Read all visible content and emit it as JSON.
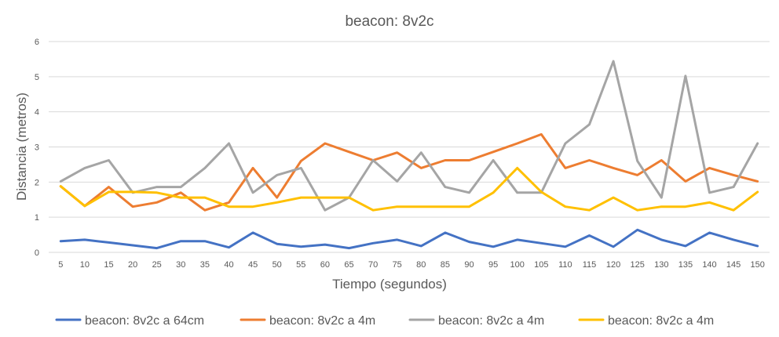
{
  "chart_data": {
    "type": "line",
    "title": "beacon: 8v2c",
    "xlabel": "Tiempo (segundos)",
    "ylabel": "Distancia (metros)",
    "ylim": [
      0,
      6
    ],
    "yticks": [
      "0",
      "1",
      "2",
      "3",
      "4",
      "5",
      "6"
    ],
    "grid": true,
    "legend": "bottom",
    "x": [
      5,
      10,
      15,
      20,
      25,
      30,
      35,
      40,
      45,
      50,
      55,
      60,
      65,
      70,
      75,
      80,
      85,
      90,
      95,
      100,
      105,
      110,
      115,
      120,
      125,
      130,
      135,
      140,
      145,
      150
    ],
    "series": [
      {
        "name": "beacon: 8v2c a 64cm",
        "color": "#4472c4",
        "values": [
          0.32,
          0.36,
          0.28,
          0.2,
          0.12,
          0.32,
          0.32,
          0.14,
          0.56,
          0.24,
          0.16,
          0.22,
          0.12,
          0.26,
          0.36,
          0.18,
          0.56,
          0.3,
          0.16,
          0.36,
          0.26,
          0.16,
          0.48,
          0.16,
          0.64,
          0.36,
          0.18,
          0.56,
          0.36,
          0.18
        ]
      },
      {
        "name": "beacon: 8v2c a 4m",
        "color": "#ed7d31",
        "values": [
          1.88,
          1.32,
          1.86,
          1.3,
          1.42,
          1.7,
          1.2,
          1.42,
          2.4,
          1.56,
          2.6,
          3.1,
          2.86,
          2.62,
          2.84,
          2.4,
          2.62,
          2.62,
          2.86,
          3.1,
          3.36,
          2.4,
          2.62,
          2.4,
          2.2,
          2.62,
          2.02,
          2.4,
          2.2,
          2.02
        ]
      },
      {
        "name": "beacon: 8v2c a 4m",
        "color": "#a5a5a5",
        "values": [
          2.02,
          2.4,
          2.62,
          1.7,
          1.86,
          1.86,
          2.4,
          3.1,
          1.7,
          2.2,
          2.4,
          1.2,
          1.56,
          2.62,
          2.02,
          2.84,
          1.86,
          1.7,
          2.62,
          1.7,
          1.7,
          3.1,
          3.64,
          5.44,
          2.6,
          1.56,
          5.02,
          1.7,
          1.86,
          3.1
        ]
      },
      {
        "name": "beacon: 8v2c a 4m",
        "color": "#ffc000",
        "values": [
          1.88,
          1.32,
          1.72,
          1.72,
          1.7,
          1.56,
          1.56,
          1.3,
          1.3,
          1.42,
          1.56,
          1.56,
          1.56,
          1.2,
          1.3,
          1.3,
          1.3,
          1.3,
          1.7,
          2.4,
          1.72,
          1.3,
          1.2,
          1.56,
          1.2,
          1.3,
          1.3,
          1.42,
          1.2,
          1.72
        ]
      }
    ]
  }
}
